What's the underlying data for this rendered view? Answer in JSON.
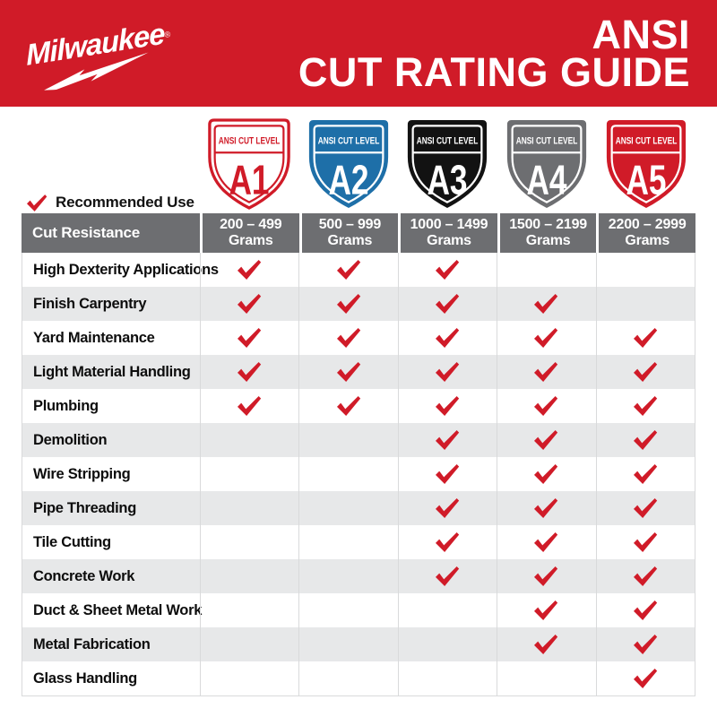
{
  "banner": {
    "logo_text": "Milwaukee",
    "registered_mark": "®",
    "title_line1": "ANSI",
    "title_line2": "CUT RATING GUIDE"
  },
  "shields": {
    "band_label": "ANSI CUT LEVEL",
    "levels": [
      {
        "level": "A1",
        "fill": "#FFFFFF",
        "accent": "#D01B28",
        "text": "#D01B28",
        "outlined": true
      },
      {
        "level": "A2",
        "fill": "#1E6FA8",
        "accent": "#FFFFFF",
        "text": "#FFFFFF",
        "outlined": false
      },
      {
        "level": "A3",
        "fill": "#121212",
        "accent": "#FFFFFF",
        "text": "#FFFFFF",
        "outlined": false
      },
      {
        "level": "A4",
        "fill": "#6D6E71",
        "accent": "#FFFFFF",
        "text": "#FFFFFF",
        "outlined": false
      },
      {
        "level": "A5",
        "fill": "#D01B28",
        "accent": "#FFFFFF",
        "text": "#FFFFFF",
        "outlined": false
      }
    ]
  },
  "legend": {
    "label": "Recommended Use"
  },
  "table": {
    "corner_header": "Cut Resistance",
    "column_headers": [
      {
        "range": "200 – 499",
        "unit": "Grams"
      },
      {
        "range": "500 – 999",
        "unit": "Grams"
      },
      {
        "range": "1000 – 1499",
        "unit": "Grams"
      },
      {
        "range": "1500 – 2199",
        "unit": "Grams"
      },
      {
        "range": "2200 – 2999",
        "unit": "Grams"
      }
    ],
    "rows": [
      {
        "label": "High Dexterity Applications",
        "checks": [
          1,
          1,
          1,
          0,
          0
        ]
      },
      {
        "label": "Finish Carpentry",
        "checks": [
          1,
          1,
          1,
          1,
          0
        ]
      },
      {
        "label": "Yard Maintenance",
        "checks": [
          1,
          1,
          1,
          1,
          1
        ]
      },
      {
        "label": "Light Material Handling",
        "checks": [
          1,
          1,
          1,
          1,
          1
        ]
      },
      {
        "label": "Plumbing",
        "checks": [
          1,
          1,
          1,
          1,
          1
        ]
      },
      {
        "label": "Demolition",
        "checks": [
          0,
          0,
          1,
          1,
          1
        ]
      },
      {
        "label": "Wire Stripping",
        "checks": [
          0,
          0,
          1,
          1,
          1
        ]
      },
      {
        "label": "Pipe Threading",
        "checks": [
          0,
          0,
          1,
          1,
          1
        ]
      },
      {
        "label": "Tile Cutting",
        "checks": [
          0,
          0,
          1,
          1,
          1
        ]
      },
      {
        "label": "Concrete Work",
        "checks": [
          0,
          0,
          1,
          1,
          1
        ]
      },
      {
        "label": "Duct & Sheet Metal Work",
        "checks": [
          0,
          0,
          0,
          1,
          1
        ]
      },
      {
        "label": "Metal Fabrication",
        "checks": [
          0,
          0,
          0,
          1,
          1
        ]
      },
      {
        "label": "Glass Handling",
        "checks": [
          0,
          0,
          0,
          0,
          1
        ]
      }
    ]
  },
  "colors": {
    "brand_red": "#D01B28",
    "header_gray": "#6D6E71",
    "alt_row_gray": "#E7E8E9",
    "shield_blue": "#1E6FA8",
    "shield_black": "#121212",
    "check_red": "#D01B28"
  }
}
